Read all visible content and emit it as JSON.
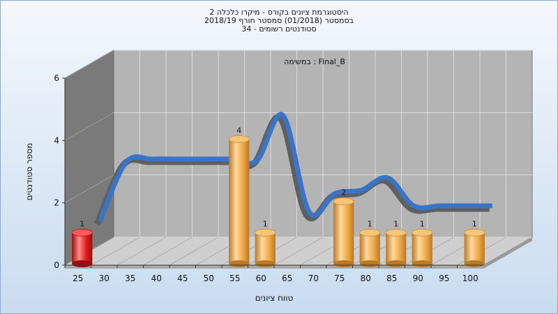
{
  "header": {
    "title_lines": [
      "היסטוגרמת ציונים בקורס - מיקרו כלכלה 2",
      "בסמסטר  (01/2018)  סמסטר חורף 2018/19",
      "סטודנטים רשומים - 34"
    ]
  },
  "chart_data": {
    "type": "bar",
    "annotation": "במשימה : Final_B",
    "xlabel": "טווח ציונים",
    "ylabel": "מספר סטודנטים",
    "ylim": [
      0,
      6
    ],
    "yticks": [
      0,
      2,
      4,
      6
    ],
    "categories": [
      "25",
      "30",
      "35",
      "40",
      "45",
      "50",
      "55",
      "60",
      "65",
      "70",
      "75",
      "80",
      "85",
      "90",
      "95",
      "100"
    ],
    "values": [
      1,
      0,
      0,
      0,
      0,
      0,
      4,
      1,
      0,
      0,
      2,
      1,
      1,
      1,
      0,
      1
    ],
    "bar_colors": [
      "#e31a1a",
      "#f0a844",
      "#f0a844",
      "#f0a844",
      "#f0a844",
      "#f0a844",
      "#f0a844",
      "#f0a844",
      "#f0a844",
      "#f0a844",
      "#f0a844",
      "#f0a844",
      "#f0a844",
      "#f0a844",
      "#f0a844",
      "#f0a844"
    ],
    "trend_curve": [
      1,
      2.9,
      3,
      3,
      3,
      3,
      2.95,
      4.4,
      1.3,
      1.9,
      2,
      2.4,
      1.5,
      1.5,
      1.5,
      1.5
    ],
    "trend_color": "#3a74c7",
    "grid": true
  }
}
